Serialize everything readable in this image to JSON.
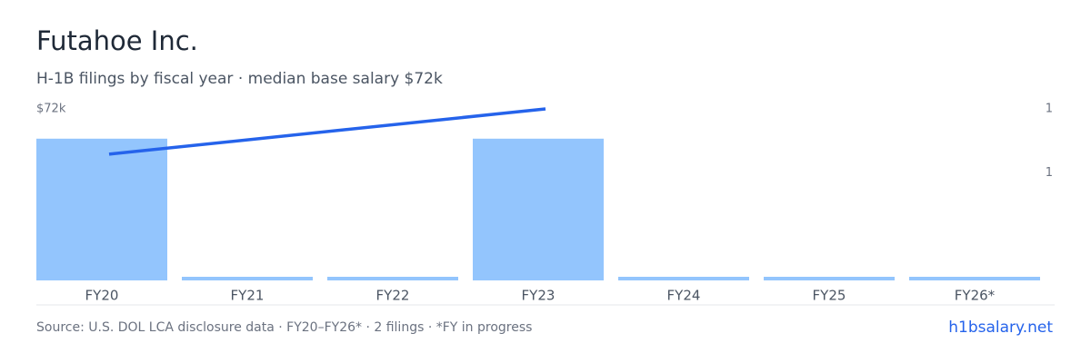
{
  "chart_data": {
    "type": "bar-line",
    "title": "Futahoe Inc.",
    "subtitle": "H-1B filings by fiscal year · median base salary $72k",
    "categories": [
      "FY20",
      "FY21",
      "FY22",
      "FY23",
      "FY24",
      "FY25",
      "FY26*"
    ],
    "bars": {
      "values": [
        1,
        0,
        0,
        1,
        0,
        0,
        0
      ],
      "color": "#93c5fd"
    },
    "line": {
      "categories": [
        "FY20",
        "FY23"
      ],
      "values": [
        53000,
        72000
      ],
      "color": "#2563eb"
    },
    "ylim": [
      0,
      72000
    ],
    "yticks": [
      {
        "value": 72000,
        "label": "$72k"
      }
    ],
    "y2lim": [
      0,
      1.21
    ],
    "y2ticks": [
      {
        "value": 1.21,
        "label": "1"
      },
      {
        "value": 0.76,
        "label": "1"
      }
    ],
    "source": "Source: U.S. DOL LCA disclosure data · FY20–FY26* · 2 filings · *FY in progress",
    "brand": "h1bsalary.net"
  }
}
